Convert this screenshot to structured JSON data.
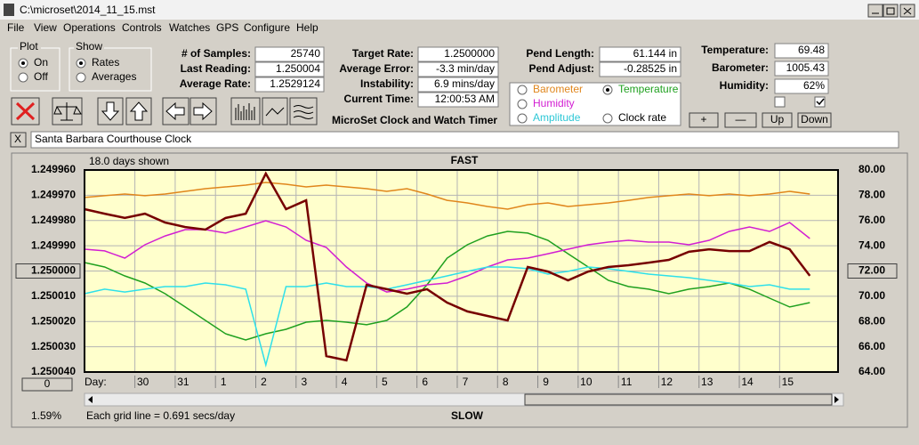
{
  "window": {
    "title": "C:\\microset\\2014_11_15.mst",
    "menu": [
      "File",
      "View",
      "Operations",
      "Controls",
      "Watches",
      "GPS",
      "Configure",
      "Help"
    ],
    "plot_group": {
      "title": "Plot",
      "options": [
        "On",
        "Off"
      ]
    },
    "show_group": {
      "title": "Show",
      "options": [
        "Rates",
        "Averages"
      ]
    },
    "stats": [
      {
        "label": "# of Samples:",
        "value": "25740"
      },
      {
        "label": "Last Reading:",
        "value": "1.250004"
      },
      {
        "label": "Average Rate:",
        "value": "1.2529124"
      },
      {
        "label": "Target Rate:",
        "value": "1.2500000"
      },
      {
        "label": "Average Error:",
        "value": "-3.3 min/day"
      },
      {
        "label": "Instability:",
        "value": "6.9 mins/day"
      },
      {
        "label": "Current Time:",
        "value": "12:00:53 AM"
      },
      {
        "label": "Pend Length:",
        "value": "61.144 in"
      },
      {
        "label": "Pend Adjust:",
        "value": "-0.28525 in"
      },
      {
        "label": "Temperature:",
        "value": "69.48"
      },
      {
        "label": "Barometer:",
        "value": "1005.43"
      },
      {
        "label": "Humidity:",
        "value": "62%"
      }
    ],
    "legend_extra": "Clock rate",
    "app_name": "MicroSet Clock and Watch Timer",
    "buttons": [
      "+",
      "—",
      "Up",
      "Down"
    ],
    "close_button": "X",
    "clock_name": "Santa Barbara Courthouse Clock"
  },
  "chart_data": {
    "type": "line",
    "top_label": "FAST",
    "bottom_label": "SLOW",
    "note": "18.0 days shown",
    "grid_note": "Each grid line = 0.691 secs/day",
    "x_label": "Day:",
    "corner_label": "1.59%",
    "offset_button": "0",
    "grid": true,
    "x": [
      0,
      0.5,
      1,
      1.5,
      2,
      2.5,
      3,
      3.5,
      4,
      4.5,
      5,
      5.5,
      6,
      6.5,
      7,
      7.5,
      8,
      8.5,
      9,
      9.5,
      10,
      10.5,
      11,
      11.5,
      12,
      12.5,
      13,
      13.5,
      14,
      14.5,
      15,
      15.5,
      16,
      16.5,
      17,
      17.5,
      18
    ],
    "xlim": [
      0,
      18.7
    ],
    "xticks": [
      {
        "value": 1.25,
        "label": "30"
      },
      {
        "value": 2.25,
        "label": "31"
      },
      {
        "value": 3.25,
        "label": "1"
      },
      {
        "value": 4.25,
        "label": "2"
      },
      {
        "value": 5.25,
        "label": "3"
      },
      {
        "value": 6.25,
        "label": "4"
      },
      {
        "value": 7.25,
        "label": "5"
      },
      {
        "value": 8.25,
        "label": "6"
      },
      {
        "value": 9.25,
        "label": "7"
      },
      {
        "value": 10.25,
        "label": "8"
      },
      {
        "value": 11.25,
        "label": "9"
      },
      {
        "value": 12.25,
        "label": "10"
      },
      {
        "value": 13.25,
        "label": "11"
      },
      {
        "value": 14.25,
        "label": "12"
      },
      {
        "value": 15.25,
        "label": "13"
      },
      {
        "value": 16.25,
        "label": "14"
      },
      {
        "value": 17.25,
        "label": "15"
      }
    ],
    "ylim": [
      1.25004,
      1.24996
    ],
    "yticks": [
      {
        "value": 1.24996,
        "label": "1.249960"
      },
      {
        "value": 1.24997,
        "label": "1.249970"
      },
      {
        "value": 1.24998,
        "label": "1.249980"
      },
      {
        "value": 1.24999,
        "label": "1.249990"
      },
      {
        "value": 1.25,
        "label": "1.250000"
      },
      {
        "value": 1.25001,
        "label": "1.250010"
      },
      {
        "value": 1.25002,
        "label": "1.250020"
      },
      {
        "value": 1.25003,
        "label": "1.250030"
      },
      {
        "value": 1.25004,
        "label": "1.250040"
      }
    ],
    "y2lim": [
      64,
      80
    ],
    "y2ticks": [
      {
        "value": 80,
        "label": "80.00"
      },
      {
        "value": 78,
        "label": "78.00"
      },
      {
        "value": 76,
        "label": "76.00"
      },
      {
        "value": 74,
        "label": "74.00"
      },
      {
        "value": 72,
        "label": "72.00"
      },
      {
        "value": 70,
        "label": "70.00"
      },
      {
        "value": 68,
        "label": "68.00"
      },
      {
        "value": 66,
        "label": "66.00"
      },
      {
        "value": 64,
        "label": "64.00"
      }
    ],
    "series": [
      {
        "name": "Barometer",
        "color": "#e0861c",
        "axis": "y2",
        "values": [
          77.82,
          77.96,
          78.1,
          77.96,
          78.1,
          78.31,
          78.52,
          78.66,
          78.8,
          79.01,
          78.87,
          78.66,
          78.8,
          78.66,
          78.52,
          78.31,
          78.52,
          78.1,
          77.6,
          77.39,
          77.11,
          76.9,
          77.25,
          77.39,
          77.11,
          77.25,
          77.39,
          77.6,
          77.82,
          77.96,
          78.1,
          77.96,
          78.1,
          77.96,
          78.1,
          78.31,
          78.1
        ]
      },
      {
        "name": "Temperature",
        "color": "#1fa01f",
        "axis": "y2",
        "values": [
          72.67,
          72.32,
          71.61,
          71.05,
          70.2,
          69.15,
          68.09,
          67.03,
          66.54,
          67.03,
          67.38,
          67.95,
          68.09,
          67.95,
          67.74,
          68.09,
          69.15,
          70.91,
          73.02,
          74.08,
          74.78,
          75.14,
          75.0,
          74.43,
          73.37,
          72.32,
          71.26,
          70.77,
          70.56,
          70.2,
          70.56,
          70.77,
          71.05,
          70.56,
          69.85,
          69.15,
          69.5
        ]
      },
      {
        "name": "Humidity",
        "color": "#d21ed2",
        "axis": "y2",
        "values": [
          73.73,
          73.59,
          73.02,
          74.08,
          74.78,
          75.28,
          75.28,
          75.0,
          75.49,
          75.98,
          75.49,
          74.43,
          73.87,
          72.32,
          71.05,
          70.34,
          70.56,
          70.91,
          71.05,
          71.61,
          72.32,
          72.88,
          73.02,
          73.37,
          73.73,
          74.08,
          74.29,
          74.43,
          74.29,
          74.29,
          74.08,
          74.43,
          75.14,
          75.49,
          75.14,
          75.84,
          74.57
        ]
      },
      {
        "name": "Amplitude",
        "color": "#2ee0ea",
        "axis": "y2",
        "values": [
          70.2,
          70.56,
          70.34,
          70.56,
          70.77,
          70.77,
          71.05,
          70.91,
          70.56,
          64.56,
          70.77,
          70.77,
          71.05,
          70.77,
          70.77,
          70.56,
          70.91,
          71.26,
          71.61,
          71.97,
          72.32,
          72.32,
          72.18,
          71.75,
          71.97,
          72.32,
          72.18,
          71.97,
          71.75,
          71.61,
          71.47,
          71.26,
          71.05,
          70.77,
          70.91,
          70.56,
          70.56
        ]
      },
      {
        "color": "#760000",
        "axis": "y",
        "values": [
          1.2499755,
          1.2499773,
          1.249979,
          1.2499773,
          1.2499808,
          1.2499826,
          1.2499836,
          1.249979,
          1.2499773,
          1.2499614,
          1.2499755,
          1.249972,
          1.2500337,
          1.2500354,
          1.2500055,
          1.2500072,
          1.250009,
          1.2500072,
          1.2500125,
          1.250016,
          1.2500178,
          1.2500196,
          1.2499984,
          1.2500002,
          1.2500037,
          1.2500002,
          1.2499984,
          1.2499977,
          1.2499967,
          1.2499956,
          1.2499924,
          1.2499914,
          1.2499921,
          1.2499921,
          1.2499885,
          1.2499914,
          1.2500019
        ]
      }
    ]
  }
}
